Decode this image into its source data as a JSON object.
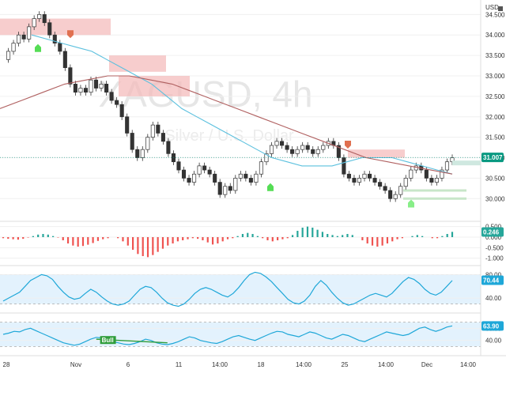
{
  "header": {
    "currency": "USD"
  },
  "watermark": {
    "symbol": "XAGUSD, 4h",
    "description": "Silver / U.S. Dollar"
  },
  "colors": {
    "up": "#26a69a",
    "down": "#ef5350",
    "sma_fast": "#5bc0de",
    "sma_slow": "#b06060",
    "zone": "#f4b8b8",
    "support": "#c8e6c9",
    "osc_band": "#e3f2fd",
    "osc_line": "#1ea7d8",
    "price_badge": "#089981",
    "macd_badge": "#26a69a",
    "rsi_badge": "#1ea7d8"
  },
  "x_axis": {
    "labels": [
      "28",
      "Nov",
      "6",
      "11",
      "14:00",
      "18",
      "14:00",
      "25",
      "14:00",
      "Dec",
      "14:00"
    ]
  },
  "chart_data": [
    {
      "type": "line",
      "title": "XAGUSD, 4h",
      "subtitle": "Silver / U.S. Dollar",
      "xlabel": "",
      "ylabel": "USD",
      "ylim": [
        29.6,
        34.7
      ],
      "yticks": [
        30.0,
        30.5,
        31.0,
        31.5,
        32.0,
        32.5,
        33.0,
        33.5,
        34.0,
        34.5
      ],
      "ytick_labels": [
        "30.000",
        "30.500",
        "31.000",
        "31.500",
        "32.000",
        "32.500",
        "33.000",
        "33.500",
        "34.000",
        "34.500"
      ],
      "last_value": 31.007,
      "last_label": "31.007",
      "series": [
        {
          "values": [
            33.4,
            33.6,
            33.8,
            34.0,
            33.9,
            34.2,
            34.4,
            34.5,
            34.3,
            34.0,
            33.8,
            33.6,
            33.2,
            32.8,
            32.6,
            32.7,
            32.6,
            32.9,
            32.7,
            32.8,
            32.6,
            32.4,
            32.3,
            32.0,
            31.6,
            31.2,
            31.0,
            31.2,
            31.5,
            31.8,
            31.6,
            31.4,
            31.1,
            30.9,
            30.7,
            30.5,
            30.4,
            30.6,
            30.8,
            30.7,
            30.6,
            30.4,
            30.1,
            30.3,
            30.2,
            30.5,
            30.6,
            30.5,
            30.4,
            30.6,
            30.9,
            31.1,
            31.3,
            31.4,
            31.3,
            31.2,
            31.1,
            31.2,
            31.3,
            31.2,
            31.1,
            31.2,
            31.3,
            31.4,
            31.3,
            31.0,
            30.6,
            30.5,
            30.4,
            30.5,
            30.6,
            30.5,
            30.4,
            30.3,
            30.2,
            30.0,
            30.1,
            30.3,
            30.5,
            30.7,
            30.8,
            30.7,
            30.5,
            30.4,
            30.5,
            30.7,
            30.9,
            31.0
          ]
        },
        {
          "values": [
            34.0,
            33.9,
            33.8,
            33.7,
            33.6,
            33.4,
            33.2,
            33.0,
            32.8,
            32.5,
            32.2,
            32.0,
            31.8,
            31.6,
            31.4,
            31.2,
            31.0,
            30.9,
            30.8,
            30.8,
            30.8,
            30.9,
            31.0,
            31.0,
            31.0,
            30.9,
            30.8,
            30.7,
            30.6
          ]
        },
        {
          "values": [
            32.2,
            32.4,
            32.6,
            32.8,
            32.9,
            33.0,
            33.0,
            32.9,
            32.8,
            32.6,
            32.4,
            32.2,
            32.0,
            31.8,
            31.6,
            31.4,
            31.2,
            31.0,
            30.9,
            30.8,
            30.7,
            30.6
          ]
        }
      ],
      "resistance_zones": [
        {
          "from": 34.0,
          "to": 34.4
        },
        {
          "from": 33.1,
          "to": 33.5
        },
        {
          "from": 32.5,
          "to": 33.0
        },
        {
          "from": 31.0,
          "to": 31.2
        }
      ],
      "support_lines": [
        30.2,
        30.0
      ]
    },
    {
      "type": "bar",
      "title": "MACD histogram",
      "ylim": [
        -1.2,
        0.6
      ],
      "yticks": [
        0.5,
        0.0,
        -0.5,
        -1.0
      ],
      "ytick_labels": [
        "0.500",
        "0.000",
        "-0.500",
        "-1.000"
      ],
      "last_value": 0.246,
      "last_label": "0.246",
      "values": [
        -0.05,
        -0.08,
        -0.1,
        -0.12,
        -0.08,
        -0.02,
        0.05,
        0.12,
        0.15,
        0.12,
        0.05,
        -0.02,
        -0.15,
        -0.3,
        -0.4,
        -0.45,
        -0.42,
        -0.36,
        -0.28,
        -0.18,
        -0.1,
        -0.05,
        0.0,
        -0.05,
        -0.2,
        -0.4,
        -0.6,
        -0.8,
        -0.9,
        -0.95,
        -0.85,
        -0.7,
        -0.55,
        -0.4,
        -0.3,
        -0.2,
        -0.15,
        -0.1,
        -0.05,
        -0.08,
        -0.15,
        -0.25,
        -0.35,
        -0.3,
        -0.2,
        -0.1,
        -0.05,
        0.05,
        0.15,
        0.2,
        0.15,
        0.05,
        -0.05,
        -0.15,
        -0.2,
        -0.15,
        -0.1,
        -0.05,
        0.1,
        0.3,
        0.45,
        0.5,
        0.45,
        0.35,
        0.25,
        0.15,
        0.1,
        0.05,
        0.1,
        0.15,
        0.1,
        0.0,
        -0.15,
        -0.3,
        -0.4,
        -0.45,
        -0.4,
        -0.3,
        -0.2,
        -0.1,
        -0.05,
        0.0,
        0.05,
        0.1,
        0.05,
        0.0,
        -0.05,
        -0.05,
        0.05,
        0.15,
        0.25
      ]
    },
    {
      "type": "line",
      "title": "Oscillator",
      "ylim": [
        20,
        90
      ],
      "yticks": [
        80,
        40
      ],
      "ytick_labels": [
        "80.00",
        "40.00"
      ],
      "band": [
        30,
        80
      ],
      "last_value": 70.44,
      "last_label": "70.44",
      "values": [
        35,
        40,
        45,
        50,
        60,
        70,
        75,
        80,
        78,
        72,
        60,
        50,
        42,
        38,
        40,
        48,
        55,
        50,
        42,
        35,
        30,
        28,
        30,
        35,
        45,
        55,
        60,
        58,
        50,
        40,
        32,
        28,
        26,
        30,
        38,
        48,
        55,
        58,
        55,
        50,
        45,
        42,
        48,
        58,
        70,
        80,
        84,
        82,
        76,
        68,
        58,
        48,
        38,
        32,
        30,
        35,
        45,
        60,
        70,
        62,
        50,
        40,
        32,
        28,
        30,
        35,
        40,
        45,
        48,
        45,
        42,
        48,
        58,
        68,
        75,
        72,
        65,
        55,
        48,
        45,
        50,
        60,
        70
      ]
    },
    {
      "type": "line",
      "title": "RSI",
      "ylim": [
        20,
        80
      ],
      "yticks": [
        60,
        40
      ],
      "ytick_labels": [
        "60.00",
        "40.00"
      ],
      "band": [
        30,
        70
      ],
      "last_value": 63.9,
      "last_label": "63.90",
      "annotations": [
        {
          "label": "Bull",
          "at_index": 19
        }
      ],
      "values": [
        50,
        52,
        55,
        54,
        58,
        60,
        56,
        52,
        48,
        44,
        40,
        36,
        34,
        32,
        34,
        38,
        42,
        45,
        44,
        40,
        38,
        36,
        34,
        33,
        35,
        38,
        42,
        40,
        36,
        34,
        33,
        35,
        38,
        42,
        46,
        44,
        40,
        38,
        36,
        35,
        38,
        42,
        46,
        48,
        45,
        42,
        40,
        44,
        48,
        52,
        55,
        54,
        50,
        48,
        46,
        50,
        54,
        52,
        48,
        44,
        42,
        46,
        50,
        48,
        44,
        40,
        38,
        42,
        46,
        50,
        54,
        52,
        50,
        48,
        50,
        55,
        60,
        62,
        58,
        55,
        58,
        62,
        64
      ]
    }
  ]
}
